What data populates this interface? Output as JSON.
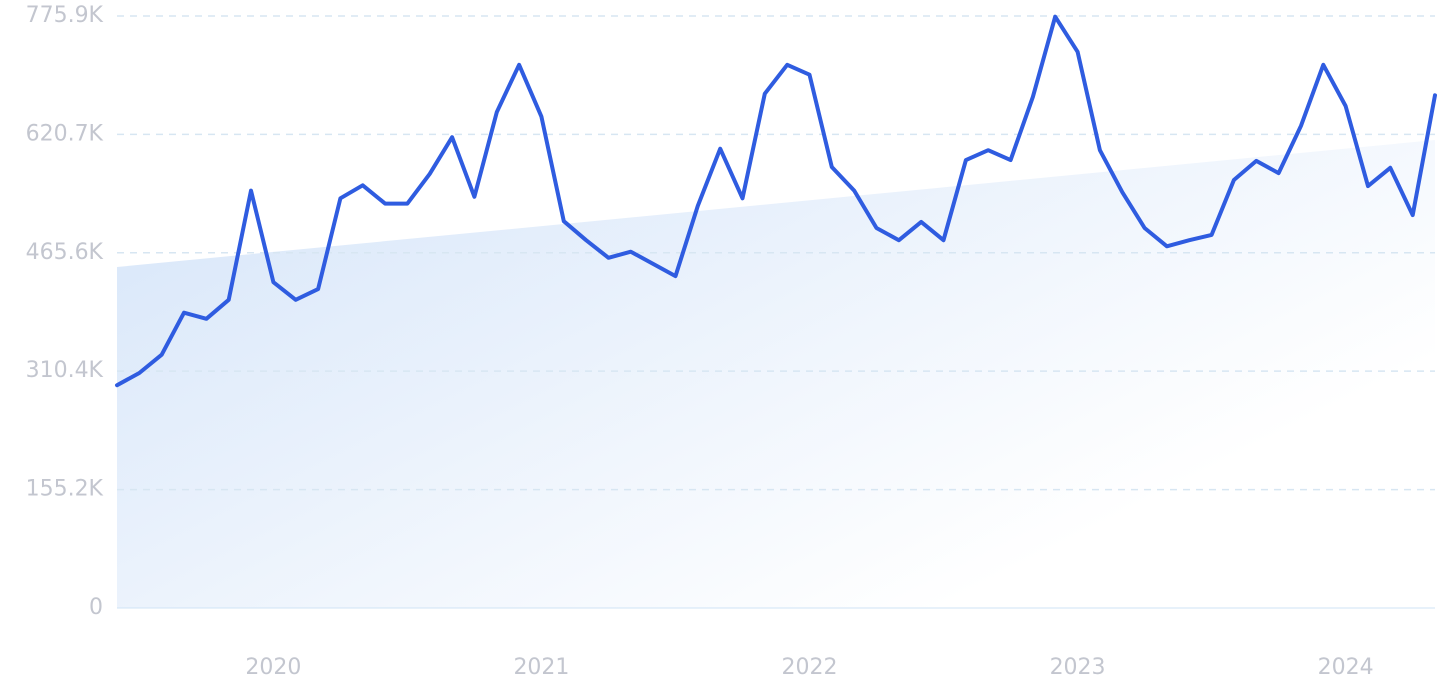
{
  "chart_data": {
    "type": "line",
    "categories": [
      null,
      null,
      null,
      null,
      null,
      null,
      null,
      "2020",
      null,
      null,
      null,
      null,
      null,
      null,
      null,
      null,
      null,
      null,
      null,
      "2021",
      null,
      null,
      null,
      null,
      null,
      null,
      null,
      null,
      null,
      null,
      null,
      "2022",
      null,
      null,
      null,
      null,
      null,
      null,
      null,
      null,
      null,
      null,
      null,
      "2023",
      null,
      null,
      null,
      null,
      null,
      null,
      null,
      null,
      null,
      null,
      null,
      "2024",
      null,
      null,
      null,
      null
    ],
    "values": [
      292000,
      308000,
      332000,
      387000,
      379000,
      404000,
      547000,
      427000,
      404000,
      418000,
      537000,
      554000,
      530000,
      530000,
      569000,
      617000,
      539000,
      650000,
      712000,
      644000,
      507000,
      482000,
      459000,
      467000,
      451000,
      435000,
      527000,
      602000,
      537000,
      674000,
      712000,
      699000,
      578000,
      547000,
      498000,
      482000,
      506000,
      482000,
      587000,
      600000,
      587000,
      670000,
      775000,
      729000,
      600000,
      545000,
      498000,
      474000,
      482000,
      489000,
      561000,
      586000,
      570000,
      632000,
      712000,
      658000,
      553000,
      577000,
      515000,
      672000
    ],
    "color": "#2f5ce0",
    "ylim": [
      0,
      775900
    ],
    "yticks": [
      0,
      {
        "value": 155200,
        "label": "155.2K"
      },
      {
        "value": 310400,
        "label": "310.4K"
      },
      {
        "value": 465600,
        "label": "465.6K"
      },
      {
        "value": 620700,
        "label": "620.7K"
      },
      {
        "value": 775900,
        "label": "775.9K"
      }
    ],
    "grid": true
  }
}
